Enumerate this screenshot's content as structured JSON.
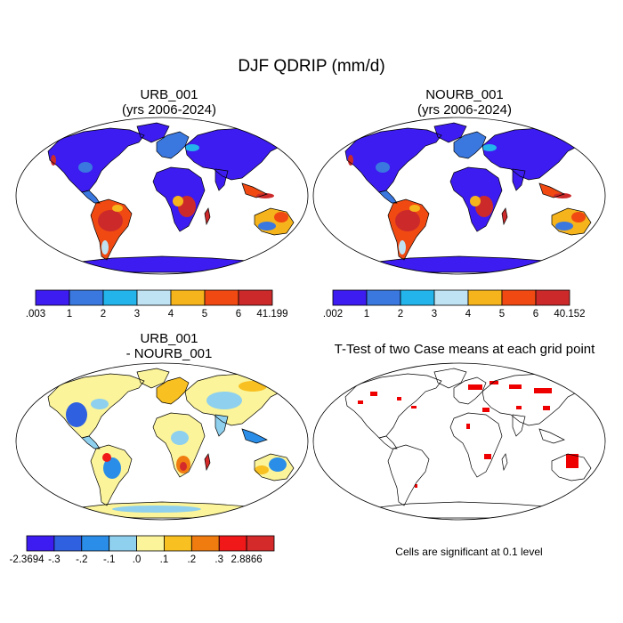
{
  "title": "DJF QDRIP (mm/d)",
  "panels": [
    {
      "id": "urb",
      "title_line1": "URB_001",
      "title_line2": "(yrs 2006-2024)"
    },
    {
      "id": "nourb",
      "title_line1": "NOURB_001",
      "title_line2": "(yrs 2006-2024)"
    },
    {
      "id": "diff",
      "title_line1": "URB_001",
      "title_line2": "- NOURB_001"
    },
    {
      "id": "ttest",
      "title_line1": "T-Test of two Case means at each grid point",
      "title_line2": ""
    }
  ],
  "colorbars": {
    "urb": {
      "colors": [
        "#3c1cf0",
        "#3a78e0",
        "#22b4ea",
        "#bfe3f2",
        "#f6b41c",
        "#f04a12",
        "#cc2a2a"
      ],
      "labels": [
        ".003",
        "1",
        "2",
        "3",
        "4",
        "5",
        "6",
        "41.199"
      ]
    },
    "nourb": {
      "colors": [
        "#3c1cf0",
        "#3a78e0",
        "#22b4ea",
        "#bfe3f2",
        "#f6b41c",
        "#f04a12",
        "#cc2a2a"
      ],
      "labels": [
        ".002",
        "1",
        "2",
        "3",
        "4",
        "5",
        "6",
        "40.152"
      ]
    },
    "diff": {
      "colors": [
        "#3c1cf0",
        "#2f60e0",
        "#2a8ee8",
        "#8ed0ee",
        "#fbf49a",
        "#f8c020",
        "#f07c10",
        "#f01818",
        "#d42a2a"
      ],
      "labels": [
        "-2.3694",
        "-.3",
        "-.2",
        "-.1",
        ".0",
        ".1",
        ".2",
        ".3",
        "2.8866"
      ]
    }
  },
  "significance_note": "Cells are significant at 0.1 level",
  "significance_color": "#ee0000"
}
